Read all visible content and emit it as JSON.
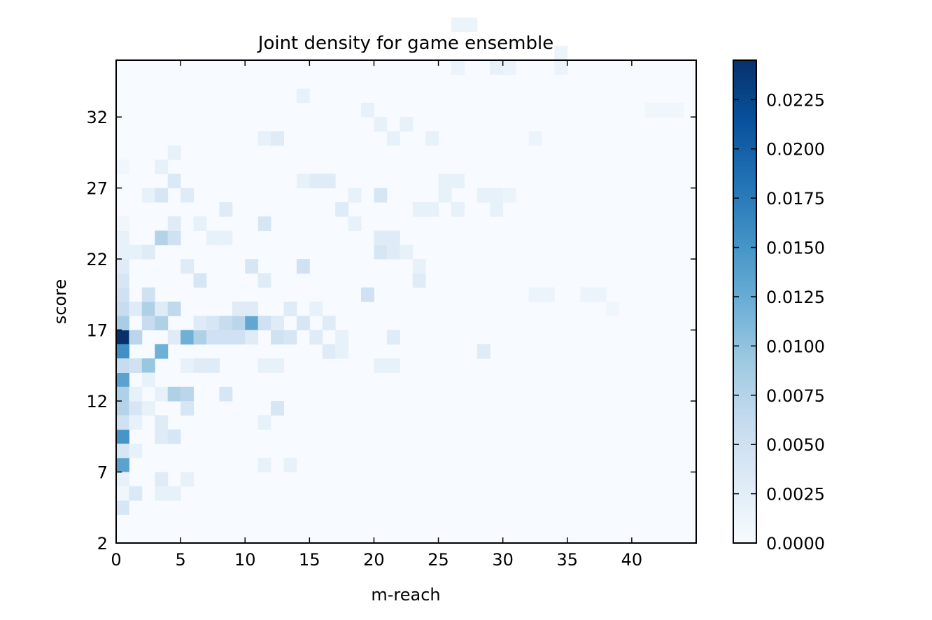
{
  "chart_data": {
    "type": "heatmap",
    "title": "Joint density for game ensemble",
    "xlabel": "m-reach",
    "ylabel": "score",
    "xlim": [
      0,
      45
    ],
    "ylim": [
      2,
      36
    ],
    "xticks": [
      0,
      5,
      10,
      15,
      20,
      25,
      30,
      35,
      40
    ],
    "yticks": [
      2,
      7,
      12,
      17,
      22,
      27,
      32
    ],
    "xtick_labels": [
      "0",
      "5",
      "10",
      "15",
      "20",
      "25",
      "30",
      "35",
      "40"
    ],
    "ytick_labels": [
      "2",
      "7",
      "12",
      "17",
      "22",
      "27",
      "32"
    ],
    "bins": {
      "x_start": 0,
      "x_width": 1,
      "y_start": 2,
      "y_height": 1
    },
    "colormap": "Blues",
    "colorbar": {
      "min": 0,
      "max": 0.0245,
      "ticks": [
        0.0,
        0.0025,
        0.005,
        0.0075,
        0.01,
        0.0125,
        0.015,
        0.0175,
        0.02,
        0.0225
      ],
      "tick_labels": [
        "0.0000",
        "0.0025",
        "0.0050",
        "0.0075",
        "0.0100",
        "0.0125",
        "0.0150",
        "0.0175",
        "0.0200",
        "0.0225"
      ]
    },
    "cells": [
      [
        0,
        14,
        0.0245
      ],
      [
        0,
        13,
        0.0155
      ],
      [
        0,
        11,
        0.0135
      ],
      [
        0,
        7,
        0.015
      ],
      [
        0,
        5,
        0.0135
      ],
      [
        0,
        10,
        0.008
      ],
      [
        0,
        9,
        0.0075
      ],
      [
        0,
        8,
        0.005
      ],
      [
        0,
        6,
        0.004
      ],
      [
        0,
        12,
        0.006
      ],
      [
        0,
        15,
        0.0085
      ],
      [
        0,
        16,
        0.006
      ],
      [
        0,
        17,
        0.005
      ],
      [
        0,
        18,
        0.004
      ],
      [
        0,
        2,
        0.004
      ],
      [
        0,
        19,
        0.003
      ],
      [
        0,
        20,
        0.002
      ],
      [
        0,
        21,
        0.002
      ],
      [
        0,
        22,
        0.001
      ],
      [
        0,
        26,
        0.001
      ],
      [
        0,
        4,
        0.002
      ],
      [
        0,
        3,
        0.001
      ],
      [
        1,
        14,
        0.007
      ],
      [
        1,
        12,
        0.005
      ],
      [
        1,
        9,
        0.004
      ],
      [
        1,
        16,
        0.003
      ],
      [
        1,
        20,
        0.002
      ],
      [
        1,
        6,
        0.002
      ],
      [
        1,
        3,
        0.0035
      ],
      [
        1,
        8,
        0.002
      ],
      [
        1,
        10,
        0.002
      ],
      [
        2,
        12,
        0.0095
      ],
      [
        2,
        16,
        0.008
      ],
      [
        2,
        15,
        0.006
      ],
      [
        2,
        17,
        0.005
      ],
      [
        2,
        20,
        0.003
      ],
      [
        2,
        11,
        0.002
      ],
      [
        2,
        9,
        0.002
      ],
      [
        2,
        24,
        0.002
      ],
      [
        3,
        13,
        0.012
      ],
      [
        3,
        15,
        0.008
      ],
      [
        3,
        21,
        0.0075
      ],
      [
        3,
        24,
        0.004
      ],
      [
        3,
        8,
        0.003
      ],
      [
        3,
        7,
        0.003
      ],
      [
        3,
        4,
        0.003
      ],
      [
        3,
        3,
        0.002
      ],
      [
        3,
        16,
        0.003
      ],
      [
        3,
        26,
        0.002
      ],
      [
        3,
        10,
        0.002
      ],
      [
        4,
        16,
        0.0065
      ],
      [
        4,
        10,
        0.008
      ],
      [
        4,
        21,
        0.005
      ],
      [
        4,
        7,
        0.004
      ],
      [
        4,
        25,
        0.0035
      ],
      [
        4,
        14,
        0.003
      ],
      [
        4,
        3,
        0.002
      ],
      [
        4,
        22,
        0.003
      ],
      [
        4,
        27,
        0.002
      ],
      [
        5,
        14,
        0.012
      ],
      [
        5,
        10,
        0.007
      ],
      [
        5,
        9,
        0.004
      ],
      [
        5,
        19,
        0.003
      ],
      [
        5,
        24,
        0.003
      ],
      [
        5,
        4,
        0.002
      ],
      [
        5,
        12,
        0.002
      ],
      [
        6,
        14,
        0.008
      ],
      [
        6,
        18,
        0.004
      ],
      [
        6,
        12,
        0.003
      ],
      [
        6,
        15,
        0.003
      ],
      [
        6,
        22,
        0.002
      ],
      [
        7,
        14,
        0.005
      ],
      [
        7,
        15,
        0.004
      ],
      [
        7,
        12,
        0.003
      ],
      [
        7,
        21,
        0.002
      ],
      [
        8,
        15,
        0.006
      ],
      [
        8,
        14,
        0.005
      ],
      [
        8,
        10,
        0.004
      ],
      [
        8,
        23,
        0.003
      ],
      [
        8,
        21,
        0.002
      ],
      [
        9,
        15,
        0.007
      ],
      [
        9,
        14,
        0.005
      ],
      [
        9,
        16,
        0.003
      ],
      [
        10,
        15,
        0.013
      ],
      [
        10,
        19,
        0.004
      ],
      [
        10,
        14,
        0.003
      ],
      [
        10,
        16,
        0.003
      ],
      [
        11,
        15,
        0.005
      ],
      [
        11,
        22,
        0.004
      ],
      [
        11,
        18,
        0.003
      ],
      [
        11,
        8,
        0.002
      ],
      [
        11,
        5,
        0.002
      ],
      [
        11,
        28,
        0.002
      ],
      [
        11,
        12,
        0.002
      ],
      [
        12,
        14,
        0.005
      ],
      [
        12,
        9,
        0.004
      ],
      [
        12,
        15,
        0.003
      ],
      [
        12,
        12,
        0.002
      ],
      [
        12,
        28,
        0.003
      ],
      [
        13,
        14,
        0.004
      ],
      [
        13,
        16,
        0.003
      ],
      [
        13,
        5,
        0.002
      ],
      [
        14,
        19,
        0.005
      ],
      [
        14,
        15,
        0.004
      ],
      [
        14,
        25,
        0.002
      ],
      [
        14,
        31,
        0.002
      ],
      [
        15,
        14,
        0.003
      ],
      [
        15,
        25,
        0.003
      ],
      [
        15,
        16,
        0.002
      ],
      [
        16,
        13,
        0.003
      ],
      [
        16,
        15,
        0.003
      ],
      [
        16,
        25,
        0.003
      ],
      [
        17,
        14,
        0.002
      ],
      [
        17,
        23,
        0.003
      ],
      [
        17,
        13,
        0.002
      ],
      [
        18,
        22,
        0.002
      ],
      [
        18,
        24,
        0.002
      ],
      [
        19,
        17,
        0.005
      ],
      [
        19,
        30,
        0.002
      ],
      [
        20,
        20,
        0.004
      ],
      [
        20,
        21,
        0.003
      ],
      [
        20,
        24,
        0.004
      ],
      [
        20,
        12,
        0.002
      ],
      [
        20,
        29,
        0.002
      ],
      [
        21,
        20,
        0.003
      ],
      [
        21,
        21,
        0.003
      ],
      [
        21,
        14,
        0.003
      ],
      [
        21,
        12,
        0.002
      ],
      [
        21,
        28,
        0.002
      ],
      [
        22,
        20,
        0.002
      ],
      [
        22,
        29,
        0.002
      ],
      [
        23,
        18,
        0.003
      ],
      [
        23,
        19,
        0.002
      ],
      [
        23,
        23,
        0.002
      ],
      [
        24,
        23,
        0.002
      ],
      [
        24,
        28,
        0.002
      ],
      [
        25,
        25,
        0.002
      ],
      [
        25,
        24,
        0.002
      ],
      [
        26,
        25,
        0.002
      ],
      [
        26,
        23,
        0.002
      ],
      [
        26,
        36,
        0.0015
      ],
      [
        26,
        33,
        0.0015
      ],
      [
        27,
        36,
        0.0015
      ],
      [
        28,
        13,
        0.003
      ],
      [
        28,
        24,
        0.002
      ],
      [
        29,
        24,
        0.002
      ],
      [
        29,
        33,
        0.002
      ],
      [
        29,
        23,
        0.002
      ],
      [
        30,
        33,
        0.0015
      ],
      [
        30,
        24,
        0.0015
      ],
      [
        32,
        17,
        0.0015
      ],
      [
        32,
        28,
        0.0015
      ],
      [
        33,
        17,
        0.0015
      ],
      [
        34,
        34,
        0.0015
      ],
      [
        34,
        33,
        0.0015
      ],
      [
        36,
        17,
        0.0015
      ],
      [
        37,
        17,
        0.0015
      ],
      [
        38,
        16,
        0.001
      ],
      [
        41,
        30,
        0.001
      ],
      [
        42,
        30,
        0.001
      ],
      [
        43,
        30,
        0.001
      ]
    ]
  }
}
